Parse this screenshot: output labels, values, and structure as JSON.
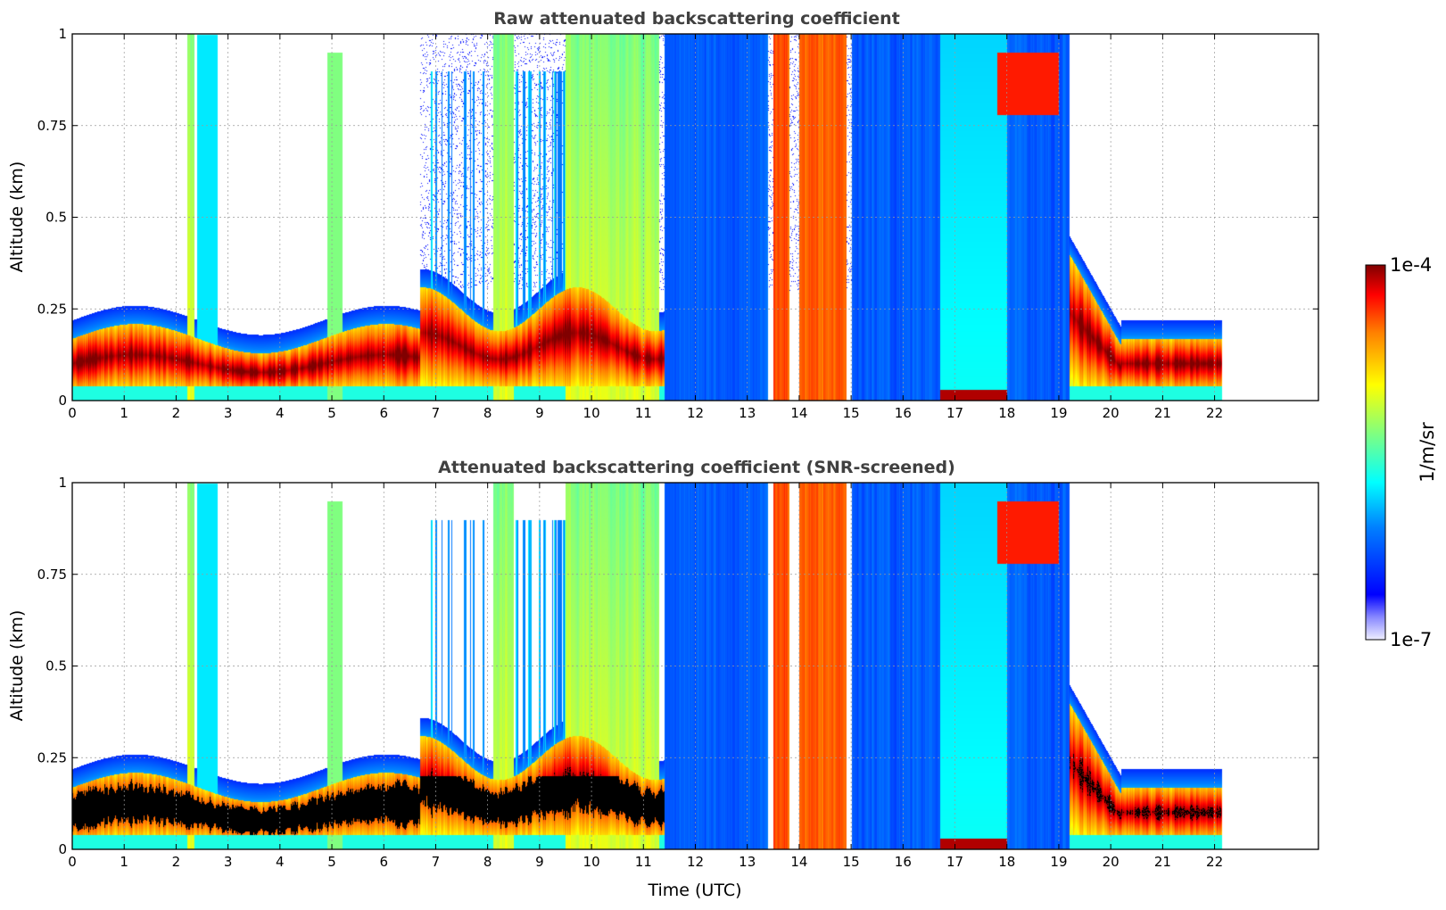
{
  "chart_data": [
    {
      "type": "heatmap",
      "title": "Raw attenuated backscattering coefficient",
      "xlabel": "",
      "ylabel": "Altitude (km)",
      "xlim": [
        0,
        24
      ],
      "ylim": [
        0,
        1
      ],
      "xticks": [
        "0",
        "1",
        "2",
        "3",
        "4",
        "5",
        "6",
        "7",
        "8",
        "9",
        "10",
        "11",
        "12",
        "13",
        "14",
        "15",
        "16",
        "17",
        "18",
        "19",
        "20",
        "21",
        "22"
      ],
      "yticks": [
        "0",
        "0.25",
        "0.5",
        "0.75",
        "1"
      ],
      "grid": true,
      "data_end_hour": 22.15,
      "screened": false
    },
    {
      "type": "heatmap",
      "title": "Attenuated backscattering coefficient (SNR-screened)",
      "xlabel": "Time (UTC)",
      "ylabel": "Altitude (km)",
      "xlim": [
        0,
        24
      ],
      "ylim": [
        0,
        1
      ],
      "xticks": [
        "0",
        "1",
        "2",
        "3",
        "4",
        "5",
        "6",
        "7",
        "8",
        "9",
        "10",
        "11",
        "12",
        "13",
        "14",
        "15",
        "16",
        "17",
        "18",
        "19",
        "20",
        "21",
        "22"
      ],
      "yticks": [
        "0",
        "0.25",
        "0.5",
        "0.75",
        "1"
      ],
      "grid": true,
      "data_end_hour": 22.15,
      "screened": true
    }
  ],
  "colorbar": {
    "label": "1/m/sr",
    "max_label": "1e-4",
    "min_label": "1e-7",
    "scale": "log",
    "range": [
      1e-07,
      0.0001
    ],
    "colormap": "jet"
  }
}
